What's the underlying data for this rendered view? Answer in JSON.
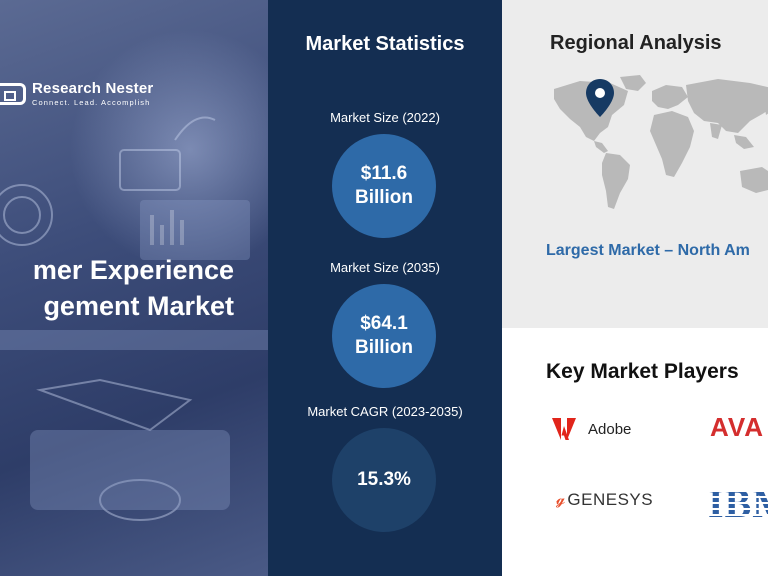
{
  "brand": {
    "name": "Research Nester",
    "tagline": "Connect. Lead. Accomplish"
  },
  "hero": {
    "title_line1": "mer Experience",
    "title_line2": "gement Market"
  },
  "statistics": {
    "heading": "Market Statistics",
    "items": [
      {
        "label": "Market Size (2022)",
        "value": "$11.6 Billion"
      },
      {
        "label": "Market Size (2035)",
        "value": "$64.1 Billion"
      },
      {
        "label": "Market CAGR (2023-2035)",
        "value": "15.3%"
      }
    ]
  },
  "regional": {
    "heading": "Regional Analysis",
    "largest_market": "Largest Market – North Am"
  },
  "players": {
    "heading": "Key Market Players",
    "list": [
      "Adobe",
      "AVA",
      "GENESYS",
      "IBM"
    ]
  },
  "colors": {
    "navy": "#142e52",
    "accent_blue": "#2e6aa8",
    "dark_circle": "#1e4169",
    "map_pin": "#163a63",
    "avaya_red": "#d42e2e",
    "adobe_red": "#e1251b",
    "ibm_blue": "#2e5fa3",
    "genesys_orange": "#e8502d"
  },
  "icons": [
    "location-pin-icon",
    "adobe-logo-icon",
    "genesys-g-icon"
  ]
}
